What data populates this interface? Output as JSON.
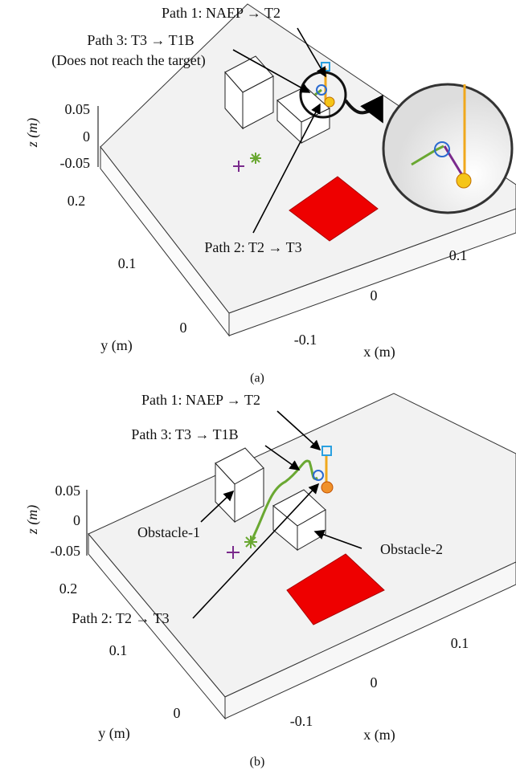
{
  "panels": [
    {
      "label": "(a)",
      "annotations": [
        "Path 1: NAEP → T2",
        "Path 3: T3 → T1B",
        "(Does not reach the target)",
        "Path 2: T2 → T3"
      ],
      "z_axis_label": "z (m)",
      "z_ticks": [
        "0.05",
        "0",
        "-0.05"
      ],
      "y_axis_label": "y (m)",
      "y_ticks": [
        "0.2",
        "0.1",
        "0"
      ],
      "x_axis_label": "x (m)",
      "x_ticks": [
        "-0.1",
        "0",
        "0.1"
      ]
    },
    {
      "label": "(b)",
      "annotations": [
        "Path 1: NAEP → T2",
        "Path 3: T3 → T1B",
        "Obstacle-1",
        "Obstacle-2",
        "Path 2: T2 → T3"
      ],
      "z_axis_label": "z (m)",
      "z_ticks": [
        "0.05",
        "0",
        "-0.05"
      ],
      "y_axis_label": "y (m)",
      "y_ticks": [
        "0.2",
        "0.1",
        "0"
      ],
      "x_axis_label": "x (m)",
      "x_ticks": [
        "-0.1",
        "0",
        "0.1"
      ]
    }
  ]
}
